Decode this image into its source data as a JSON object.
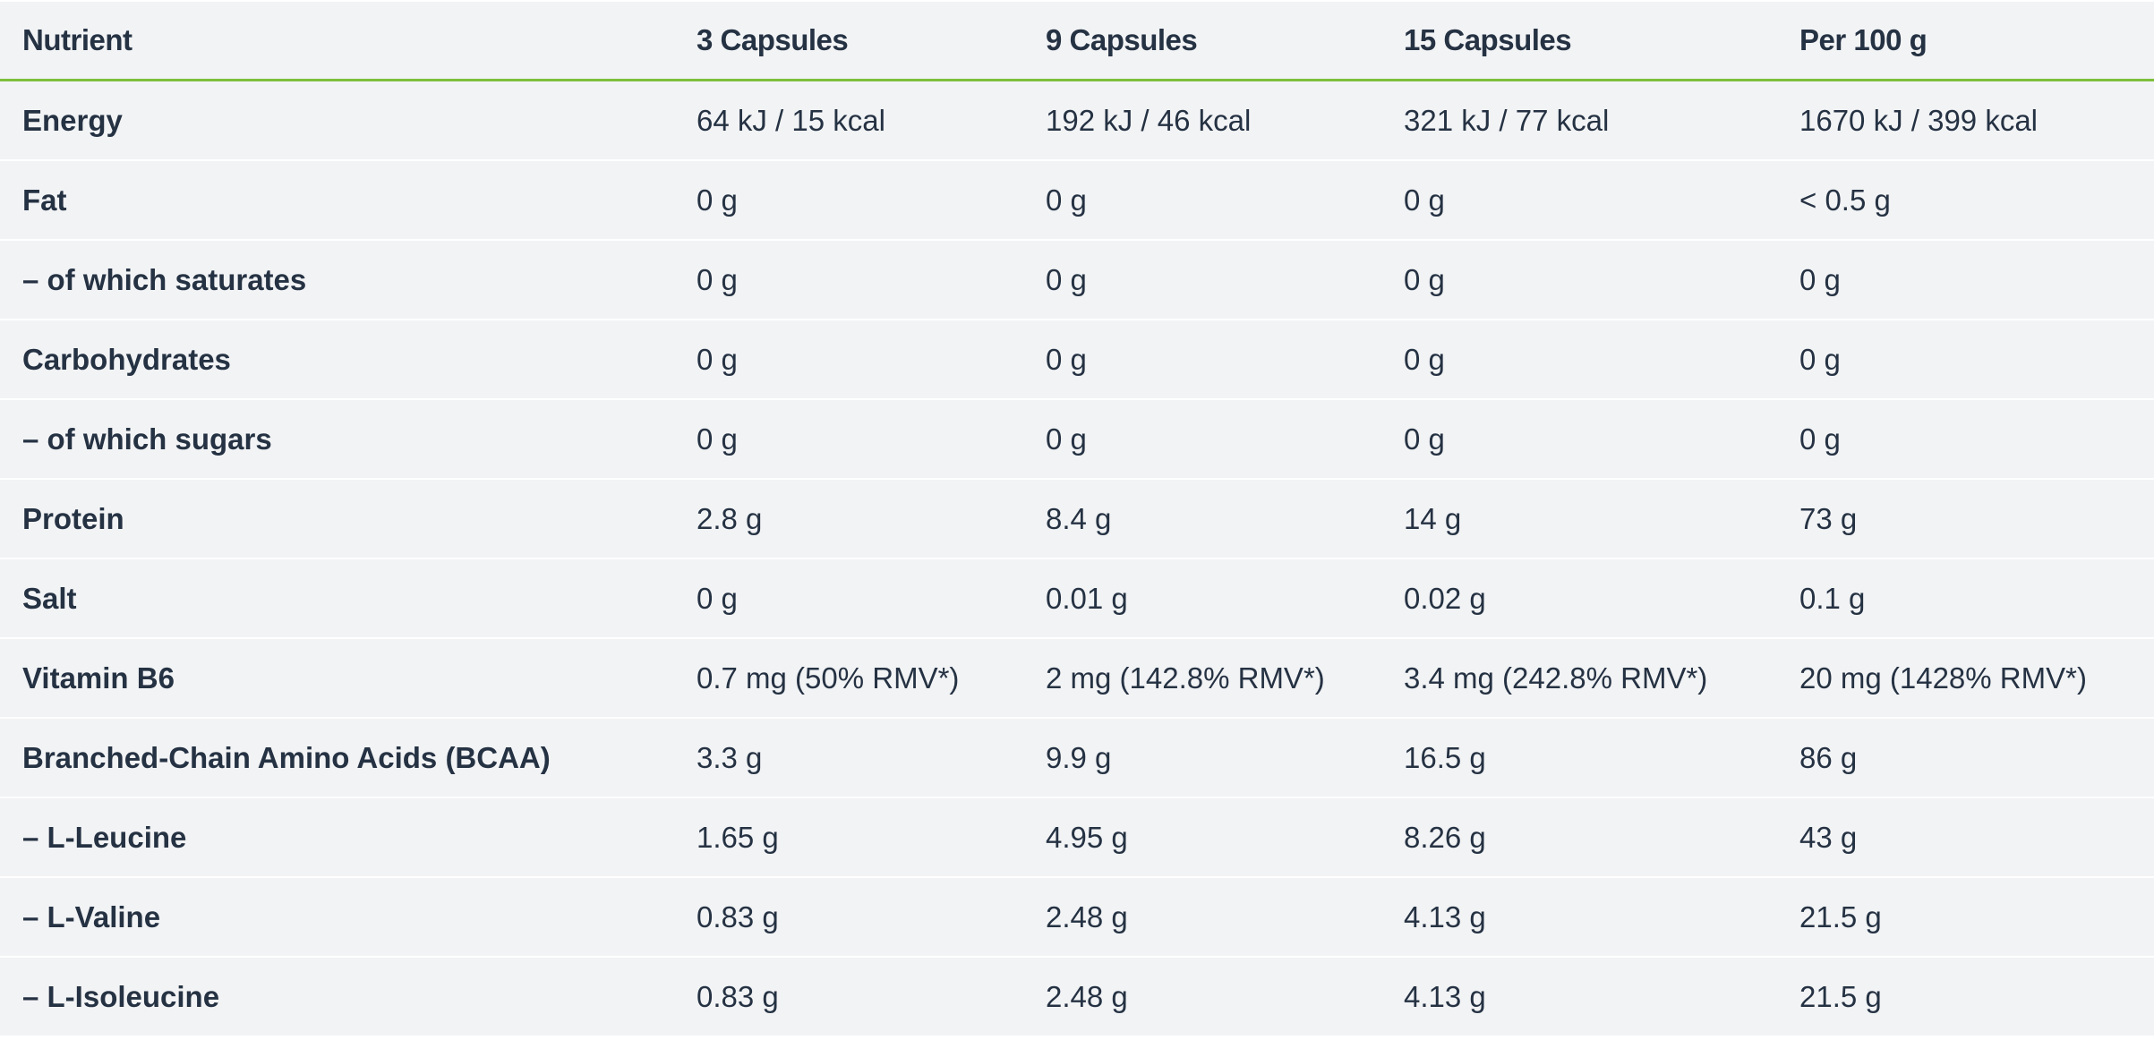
{
  "table": {
    "headers": [
      "Nutrient",
      "3 Capsules",
      "9 Capsules",
      "15 Capsules",
      "Per 100 g"
    ],
    "rows": [
      [
        "Energy",
        "64 kJ / 15 kcal",
        "192 kJ / 46 kcal",
        "321 kJ / 77 kcal",
        "1670 kJ / 399 kcal"
      ],
      [
        "Fat",
        "0 g",
        "0 g",
        "0 g",
        "< 0.5 g"
      ],
      [
        "– of which saturates",
        "0 g",
        "0 g",
        "0 g",
        "0 g"
      ],
      [
        "Carbohydrates",
        "0 g",
        "0 g",
        "0 g",
        "0 g"
      ],
      [
        "– of which sugars",
        "0 g",
        "0 g",
        "0 g",
        "0 g"
      ],
      [
        "Protein",
        "2.8 g",
        "8.4 g",
        "14 g",
        "73 g"
      ],
      [
        "Salt",
        "0 g",
        "0.01 g",
        "0.02 g",
        "0.1 g"
      ],
      [
        "Vitamin B6",
        "0.7 mg (50% RMV*)",
        "2 mg (142.8% RMV*)",
        "3.4 mg (242.8% RMV*)",
        "20 mg (1428% RMV*)"
      ],
      [
        "Branched-Chain Amino Acids (BCAA)",
        "3.3 g",
        "9.9 g",
        "16.5 g",
        "86 g"
      ],
      [
        "– L-Leucine",
        "1.65 g",
        "4.95 g",
        "8.26 g",
        "43 g"
      ],
      [
        "– L-Valine",
        "0.83 g",
        "2.48 g",
        "4.13 g",
        "21.5 g"
      ],
      [
        "– L-Isoleucine",
        "0.83 g",
        "2.48 g",
        "4.13 g",
        "21.5 g"
      ]
    ]
  },
  "colors": {
    "accent_line": "#7dbf3b",
    "text": "#253243",
    "row_bg": "#f2f3f5"
  }
}
